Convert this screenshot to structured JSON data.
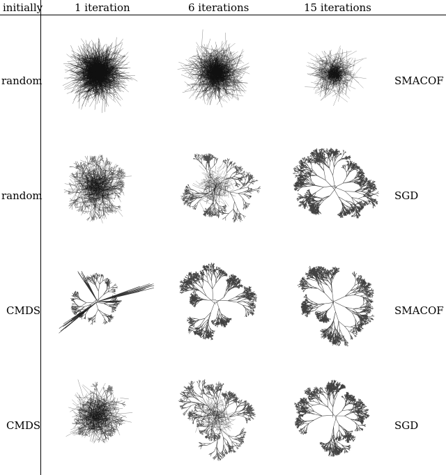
{
  "header": {
    "corner": "initially",
    "columns": [
      "1 iteration",
      "6 iterations",
      "15 iterations"
    ]
  },
  "rows": [
    {
      "init": "random",
      "method": "SMACOF",
      "panels": [
        "very-dense",
        "dense",
        "medium"
      ]
    },
    {
      "init": "random",
      "method": "SGD",
      "panels": [
        "messy",
        "semi-tree",
        "tree"
      ]
    },
    {
      "init": "CMDS",
      "method": "SMACOF",
      "panels": [
        "spiky",
        "tree",
        "tree"
      ]
    },
    {
      "init": "CMDS",
      "method": "SGD",
      "panels": [
        "messy",
        "semi-tree",
        "tree"
      ]
    }
  ]
}
